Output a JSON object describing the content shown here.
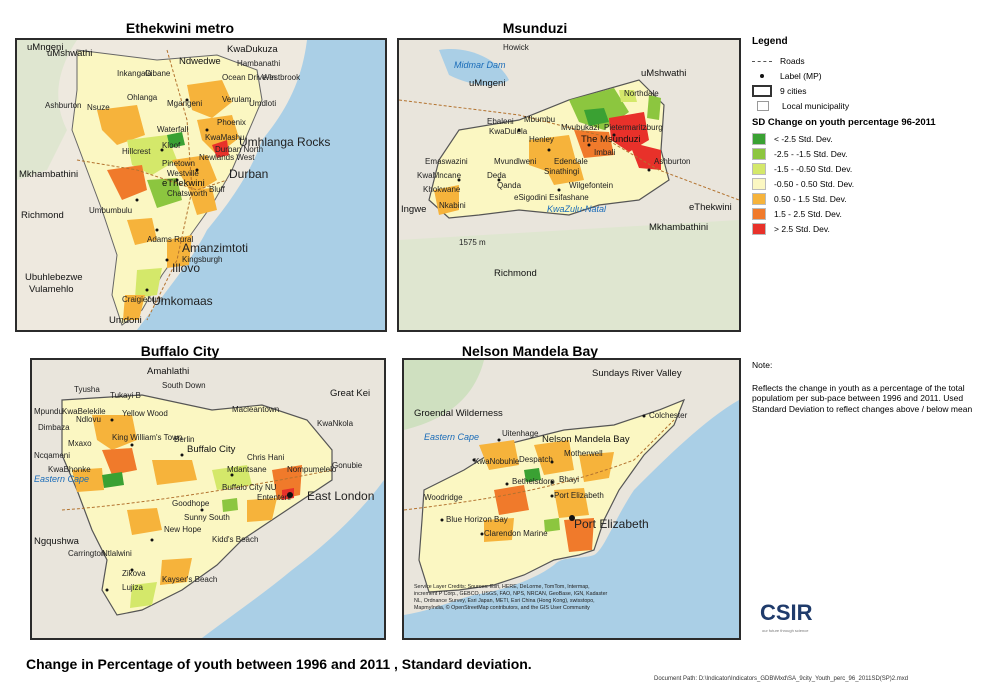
{
  "panels": {
    "ethekwini": {
      "title": "Ethekwini metro",
      "places": [
        "uMngeni",
        "Ndwedwe",
        "KwaDukuza",
        "uMshwathi",
        "Hambanathi",
        "Inkangala",
        "Cibane",
        "Ocean Drive-In",
        "Westbrook",
        "Ashburton",
        "Nsuze",
        "Ohlanga",
        "Mgangeni",
        "Umhlanga Rocks",
        "Verulam",
        "Umdloti",
        "Phoenix",
        "Waterfall",
        "Hillcrest",
        "Kloof",
        "KwaMashu",
        "Durban North",
        "Mkhambathini",
        "Pinetown",
        "Westville",
        "Newlands West",
        "Chatsworth",
        "eThekwini",
        "Durban",
        "Bluff",
        "Richmond",
        "Umbumbulu",
        "Adams Rural",
        "Amanzimtoti",
        "Illovo",
        "Kingsburgh",
        "Ubuhlebezwe",
        "Vulamehlo",
        "Umkomaas",
        "Craigieburn",
        "Umdoni"
      ]
    },
    "msunduzi": {
      "title": "Msunduzi",
      "places": [
        "Howick",
        "uMngeni",
        "uMshwathi",
        "Mbumbu",
        "Ebaleni",
        "KwaDulela",
        "Henley",
        "Mvubukazi",
        "The Msunduzi",
        "Pietermaritzburg",
        "Northdale",
        "Emaswazini",
        "KwaMncane",
        "Khokwane",
        "Nkabini",
        "Deda",
        "Mvundlweni",
        "Edendale",
        "Imbali",
        "Ashburton",
        "Qanda",
        "Wilgefontein",
        "Sinathingi",
        "eSigodini Esifashane",
        "Ingwe",
        "Richmond",
        "eThekwini",
        "Mkhambathini",
        "KwaZulu-Natal",
        "Midmar Dam"
      ],
      "elevation": "1575 m"
    },
    "buffalo": {
      "title": "Buffalo City",
      "places": [
        "Amahlathi",
        "South Down",
        "Great Kei",
        "Mpundu",
        "KwaBelekile",
        "Tyusha",
        "Tukayi B",
        "Ndlovu",
        "Dimbaza",
        "Yellow Wood",
        "KwaNkola",
        "Macleantown",
        "Mxaxo",
        "King William's Town",
        "Berlin",
        "Ncqameni",
        "KwaBhonke",
        "Gonubie",
        "Chris Hani",
        "Eastern Cape",
        "Mdantsane",
        "Nompumelelo",
        "Buffalo City",
        "Buffalo City NU",
        "East London",
        "Ententeni",
        "Sunny South",
        "Goodhope",
        "New Hope",
        "Kidd's Beach",
        "Kayser's Beach",
        "Ngqushwa",
        "Carrington",
        "Ntlalwini",
        "Zikova",
        "Lujiza"
      ]
    },
    "nmb": {
      "title": "Nelson Mandela Bay",
      "places": [
        "Sundays River Valley",
        "Colchester",
        "Groendal Wilderness",
        "Eastern Cape",
        "Uitenhage",
        "Nelson Mandela Bay",
        "KwaNobuhle",
        "Despatch",
        "Motherwell",
        "Bethelsdorp",
        "Bhayi",
        "Woodridge",
        "Port Elizabeth",
        "Blue Horizon Bay",
        "Clarendon Marine",
        "Port Elizabeth"
      ]
    }
  },
  "legend": {
    "title": "Legend",
    "roads": "Roads",
    "label_mp": "Label (MP)",
    "cities": "9 cities",
    "local_muni": "Local municipality",
    "sd_title": "SD Change on youth percentage 96-2011",
    "classes": [
      {
        "label": "< -2.5 Std. Dev.",
        "color": "#3aa133"
      },
      {
        "label": "-2.5 - -1.5 Std. Dev.",
        "color": "#8cc63f"
      },
      {
        "label": "-1.5 - -0.50 Std. Dev.",
        "color": "#d4e86a"
      },
      {
        "label": "-0.50 - 0.50 Std. Dev.",
        "color": "#fbf7c2"
      },
      {
        "label": "0.50 - 1.5 Std. Dev.",
        "color": "#f6b33b"
      },
      {
        "label": "1.5 - 2.5 Std. Dev.",
        "color": "#f07a2b"
      },
      {
        "label": "> 2.5 Std. Dev.",
        "color": "#e8312a"
      }
    ]
  },
  "note": {
    "title": "Note:",
    "body": "Reflects the change in youth as a percentage of the total populatiom per sub-pace between 1996 and 2011. Used Standard Deviation to reflect changes above / below mean"
  },
  "credits": "Service Layer Credits: Sources: Esri, HERE, DeLorme, TomTom, Intermap, increment P Corp., GEBCO, USGS, FAO, NPS, NRCAN, GeoBase, IGN, Kadaster NL, Ordnance Survey, Esri Japan, METI, Esri China (Hong Kong), swisstopo, MapmyIndia, © OpenStreetMap contributors, and the GIS User Community",
  "logo": {
    "name": "CSIR",
    "tagline": "our future through science"
  },
  "title": "Change in Percentage of youth between 1996 and 2011 , Standard deviation.",
  "doc_path": "Document Path: D:\\Indicator\\Indicators_GDB\\Mxd\\SA_9city_Youth_perc_96_2011SD(SP)2.mxd"
}
